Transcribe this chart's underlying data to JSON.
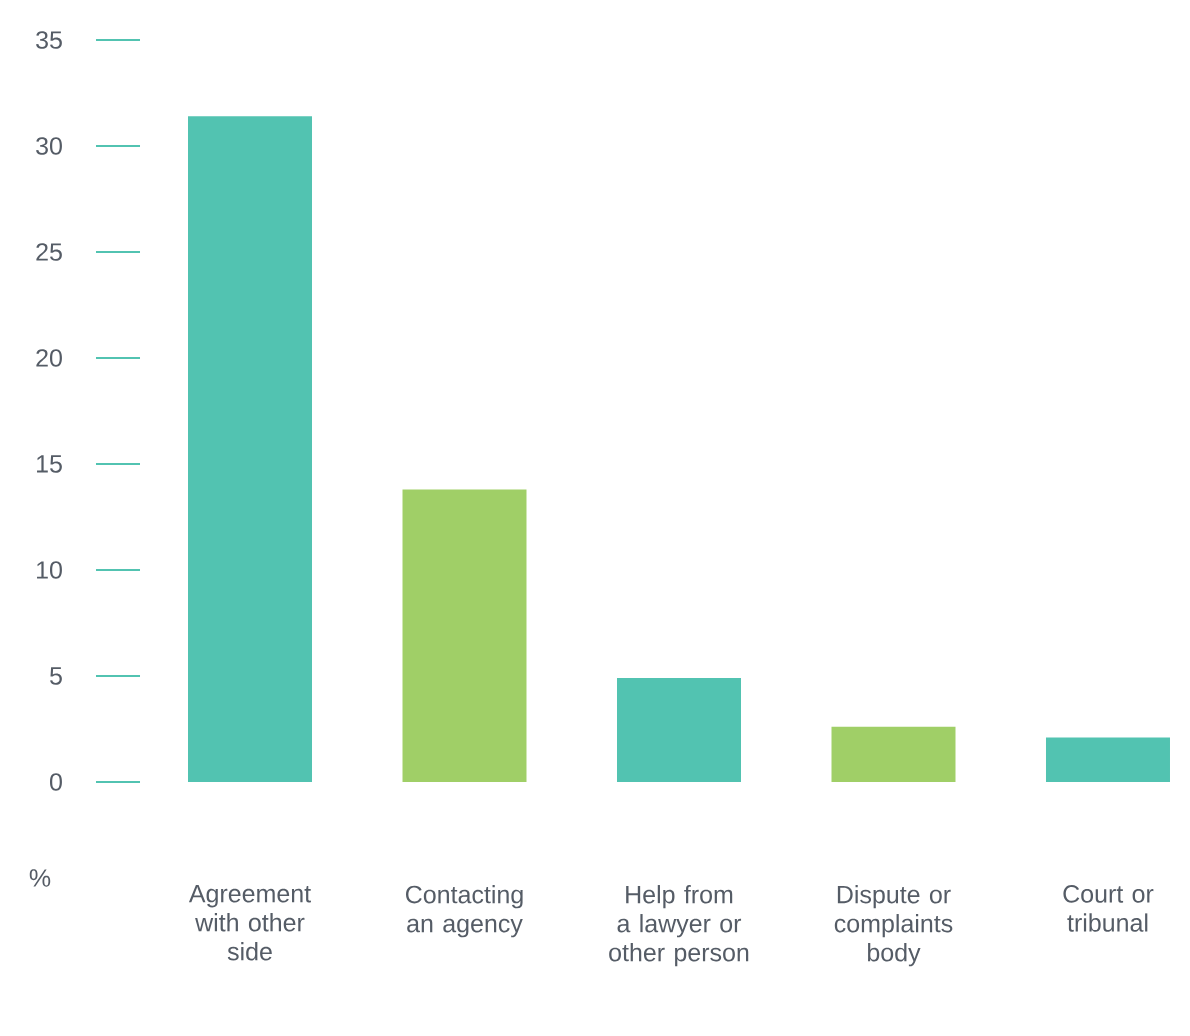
{
  "chart_data": {
    "type": "bar",
    "ylabel": "%",
    "categories": [
      "Agreement with other side",
      "Contacting an agency",
      "Help from a lawyer or other person",
      "Dispute or complaints body",
      "Court or tribunal"
    ],
    "values": [
      31.4,
      13.8,
      4.9,
      2.6,
      2.1
    ],
    "colors": [
      "#52c3b1",
      "#a0cf67",
      "#52c3b1",
      "#a0cf67",
      "#52c3b1"
    ],
    "ylim": [
      0,
      35
    ],
    "yticks": [
      0,
      5,
      10,
      15,
      20,
      25,
      30,
      35
    ],
    "grid": false
  }
}
